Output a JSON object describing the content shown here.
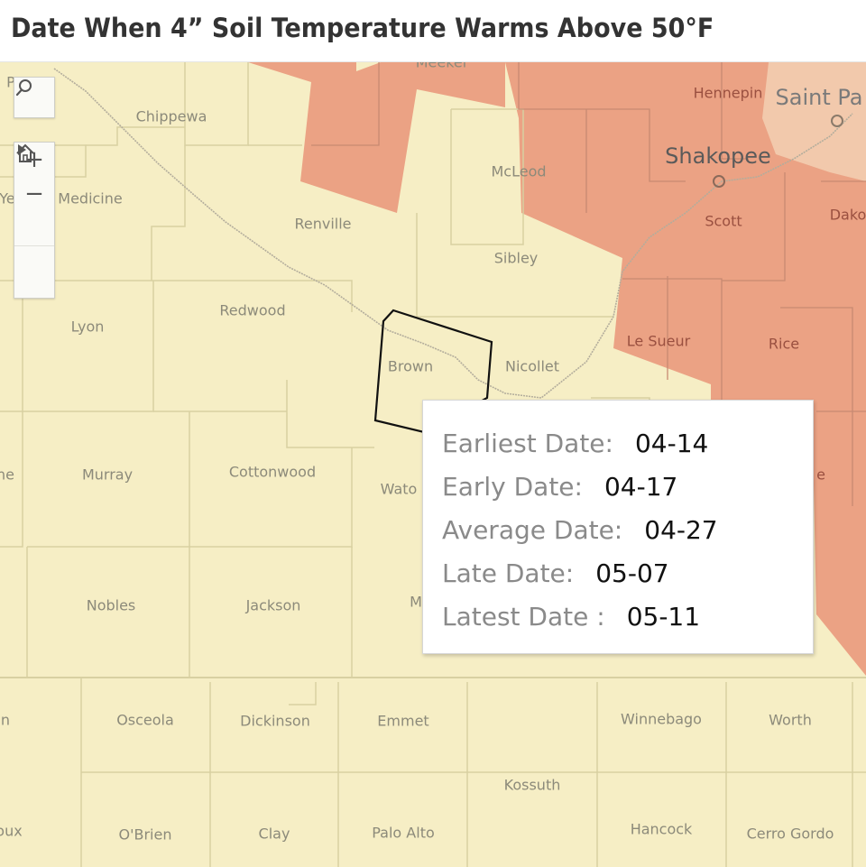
{
  "title": "Date When 4” Soil Temperature Warms Above 50°F",
  "colors": {
    "base": "#f6eec5",
    "warm": "#eba284",
    "warm_light": "#f2c9ac",
    "county_border": "#ddd5a8",
    "selected_outline": "#111111"
  },
  "controls": {
    "search_icon": "search-icon",
    "zoom_in": "+",
    "zoom_out": "−",
    "home_icon": "home-icon",
    "play_icon": "play-icon"
  },
  "counties": {
    "chippewa": "Chippewa",
    "medicine": "Medicine",
    "yellow_cut": "Ye",
    "renville": "Renville",
    "mcleod": "McLeod",
    "sibley": "Sibley",
    "hennepin": "Hennepin",
    "meeker": "Meeker",
    "scott": "Scott",
    "dakota": "Dako",
    "lyon": "Lyon",
    "redwood": "Redwood",
    "brown": "Brown",
    "nicollet": "Nicollet",
    "le_sueur": "Le Sueur",
    "rice": "Rice",
    "murray": "Murray",
    "cottonwood": "Cottonwood",
    "watonwan": "Wato",
    "pipestone_cut": "ne",
    "steele_cut": "e",
    "nobles": "Nobles",
    "jackson": "Jackson",
    "martin_cut": "M",
    "osceola": "Osceola",
    "dickinson": "Dickinson",
    "emmet": "Emmet",
    "winnebago": "Winnebago",
    "worth": "Worth",
    "kossuth": "Kossuth",
    "obrien": "O'Brien",
    "clay": "Clay",
    "palo_alto": "Palo Alto",
    "hancock": "Hancock",
    "cerro_gordo": "Cerro Gordo",
    "sioux_cut": "oux",
    "lyon_ia_cut": "n",
    "top_left_cut": "P"
  },
  "cities": {
    "shakopee": "Shakopee",
    "saint_paul": "Saint Pa"
  },
  "tooltip": {
    "earliest_label": "Earliest Date:",
    "earliest_value": "04-14",
    "early_label": "Early Date:",
    "early_value": "04-17",
    "average_label": "Average Date:",
    "average_value": "04-27",
    "late_label": "Late Date:",
    "late_value": "05-07",
    "latest_label": "Latest Date :",
    "latest_value": "05-11"
  }
}
